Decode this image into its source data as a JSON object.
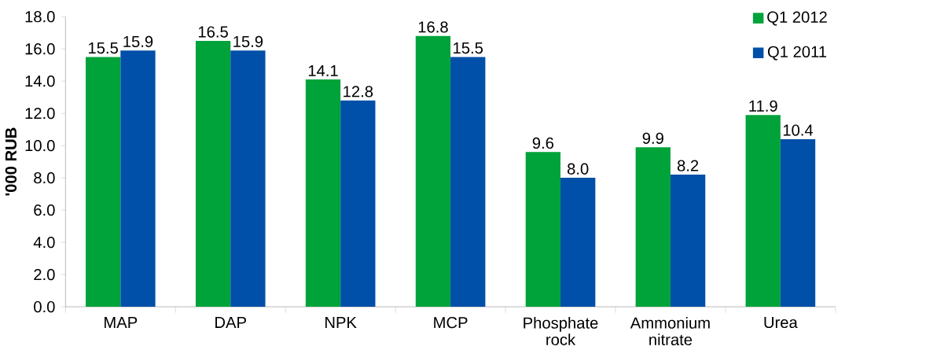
{
  "chart_data": {
    "type": "bar",
    "ylabel": "'000 RUB",
    "categories": [
      "MAP",
      "DAP",
      "NPK",
      "MCP",
      "Phosphate rock",
      "Ammonium nitrate",
      "Urea"
    ],
    "series": [
      {
        "name": "Q1 2012",
        "color": "#00a33a",
        "values": [
          15.5,
          16.5,
          14.1,
          16.8,
          9.6,
          9.9,
          11.9
        ],
        "value_labels": [
          "15.5",
          "16.5",
          "14.1",
          "16.8",
          "9.6",
          "9.9",
          "11.9"
        ]
      },
      {
        "name": "Q1 2011",
        "color": "#004fa8",
        "values": [
          15.9,
          15.9,
          12.8,
          15.5,
          8.0,
          8.2,
          10.4
        ],
        "value_labels": [
          "15.9",
          "15.9",
          "12.8",
          "15.5",
          "8.0",
          "8.2",
          "10.4"
        ]
      }
    ],
    "ylim": [
      0,
      18
    ],
    "yticks": [
      {
        "value": 0,
        "label": "0.0"
      },
      {
        "value": 2,
        "label": "2.0"
      },
      {
        "value": 4,
        "label": "4.0"
      },
      {
        "value": 6,
        "label": "6.0"
      },
      {
        "value": 8,
        "label": "8.0"
      },
      {
        "value": 10,
        "label": "10.0"
      },
      {
        "value": 12,
        "label": "12.0"
      },
      {
        "value": 14,
        "label": "14.0"
      },
      {
        "value": 16,
        "label": "16.0"
      },
      {
        "value": 18,
        "label": "18.0"
      }
    ],
    "legend": "top right",
    "grid": false
  }
}
